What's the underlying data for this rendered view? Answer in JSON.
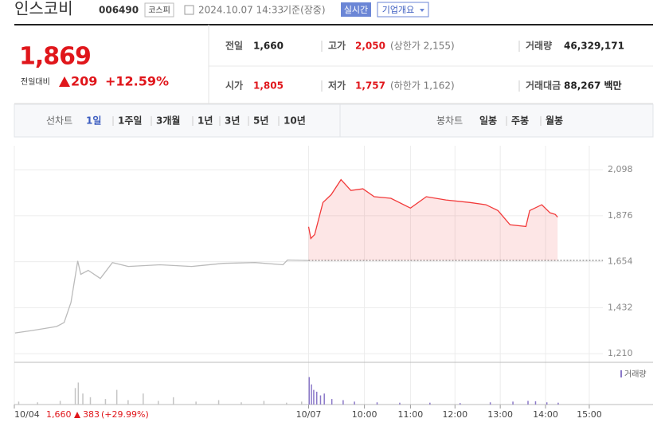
{
  "header": {
    "name": "인스코비",
    "code": "006490",
    "market": "코스피",
    "datetime": "2024.10.07 14:33",
    "basis": "기준(장중)",
    "realtime": "실시간",
    "overview": "기업개요"
  },
  "quote": {
    "price": "1,869",
    "change_label": "전일대비",
    "change": "209",
    "change_pct": "+12.59%"
  },
  "stats": [
    {
      "label": "전일",
      "value": "1,660"
    },
    {
      "label": "고가",
      "value": "2,050",
      "note": "(상한가 2,155)"
    },
    {
      "label": "거래량",
      "value": "46,329,171"
    },
    {
      "label": "시가",
      "value": "1,805"
    },
    {
      "label": "저가",
      "value": "1,757",
      "note": "(하한가 1,162)"
    },
    {
      "label": "거래대금",
      "value": "88,267 백만"
    }
  ],
  "tabs": {
    "line_label": "선차트",
    "periods": [
      "1일",
      "1주일",
      "3개월",
      "1년",
      "3년",
      "5년",
      "10년"
    ],
    "candle_label": "봉차트",
    "candles": [
      "일봉",
      "주봉",
      "월봉"
    ]
  },
  "chart_data": {
    "type": "line",
    "xlim": [
      -390,
      390
    ],
    "xticks": [
      {
        "value": -390,
        "label": "10/04"
      },
      {
        "value": 0,
        "label": "10/07"
      },
      {
        "value": 74,
        "label": "10:00"
      },
      {
        "value": 135,
        "label": "11:00"
      },
      {
        "value": 194,
        "label": "12:00"
      },
      {
        "value": 254,
        "label": "13:00"
      },
      {
        "value": 314,
        "label": "14:00"
      },
      {
        "value": 372,
        "label": "15:00"
      }
    ],
    "ylim": [
      1168,
      2214
    ],
    "yticks": [
      {
        "value": 1210,
        "label": "1,210"
      },
      {
        "value": 1432,
        "label": "1,432"
      },
      {
        "value": 1654,
        "label": "1,654"
      },
      {
        "value": 1876,
        "label": "1,876"
      },
      {
        "value": 2098,
        "label": "2,098"
      }
    ],
    "grid": true,
    "baseline": 1660,
    "prev_day": {
      "close": "1,660",
      "change": "383",
      "change_pct": "(+29.99%)"
    },
    "series": [
      {
        "color": "#bbbbbb",
        "fill": false,
        "x": [
          -389,
          -366,
          -334,
          -324,
          -315,
          -306,
          -302,
          -292,
          -276,
          -260,
          -239,
          -197,
          -155,
          -113,
          -71,
          -34,
          -28,
          0
        ],
        "values": [
          1310,
          1322,
          1341,
          1360,
          1457,
          1658,
          1593,
          1612,
          1573,
          1650,
          1631,
          1639,
          1631,
          1646,
          1650,
          1639,
          1662,
          1660
        ]
      },
      {
        "color": "#f23a3a",
        "fill": true,
        "x": [
          0,
          3,
          8,
          19,
          30,
          43,
          56,
          72,
          87,
          109,
          135,
          156,
          182,
          214,
          235,
          251,
          267,
          288,
          293,
          309,
          320,
          327,
          330
        ],
        "values": [
          1823,
          1766,
          1785,
          1940,
          1978,
          2050,
          1998,
          2006,
          1968,
          1960,
          1913,
          1968,
          1952,
          1940,
          1929,
          1901,
          1832,
          1824,
          1901,
          1929,
          1890,
          1882,
          1869
        ]
      }
    ],
    "volume": {
      "name": "거래량",
      "color": "#8a78c8",
      "ylim": [
        0,
        100
      ],
      "series": [
        {
          "color": "#c4c4c4",
          "x": [
            -385,
            -360,
            -330,
            -310,
            -306,
            -300,
            -290,
            -270,
            -255,
            -240,
            -220,
            -200,
            -180,
            -150,
            -120,
            -90,
            -60,
            -30,
            -10
          ],
          "values": [
            8,
            6,
            10,
            45,
            60,
            30,
            20,
            15,
            40,
            12,
            30,
            10,
            20,
            8,
            12,
            6,
            10,
            5,
            8
          ]
        },
        {
          "color": "#8a78c8",
          "x": [
            0,
            3,
            6,
            10,
            15,
            20,
            30,
            45,
            60,
            90,
            120,
            160,
            200,
            240,
            270,
            290,
            300,
            315,
            330
          ],
          "values": [
            75,
            55,
            40,
            35,
            25,
            30,
            15,
            12,
            8,
            6,
            5,
            5,
            4,
            6,
            8,
            10,
            9,
            6,
            5
          ]
        }
      ]
    }
  }
}
